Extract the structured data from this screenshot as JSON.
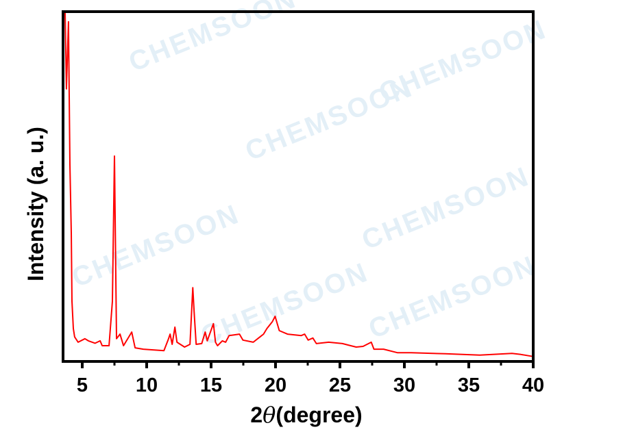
{
  "watermark": "CHEMSOON",
  "chart_data": {
    "type": "line",
    "title": "",
    "xlabel_prefix": "2",
    "xlabel_symbol": "θ",
    "xlabel_suffix": "(degree)",
    "ylabel": "Intensity (a. u.)",
    "xlim": [
      3.5,
      40
    ],
    "ylim": [
      0,
      100
    ],
    "x_ticks": [
      5,
      10,
      15,
      20,
      25,
      30,
      35,
      40
    ],
    "x_minor_step": 2.5,
    "y_ticks": [],
    "grid": false,
    "series": [
      {
        "color": "#ff0000",
        "points": [
          [
            3.51,
            100
          ],
          [
            3.67,
            100
          ],
          [
            3.77,
            77.9
          ],
          [
            3.93,
            97.1
          ],
          [
            4.04,
            56.4
          ],
          [
            4.15,
            36.8
          ],
          [
            4.2,
            17.2
          ],
          [
            4.31,
            9.4
          ],
          [
            4.41,
            7.0
          ],
          [
            4.68,
            5.5
          ],
          [
            5.21,
            6.5
          ],
          [
            5.48,
            5.9
          ],
          [
            6.0,
            5.2
          ],
          [
            6.39,
            5.9
          ],
          [
            6.55,
            4.5
          ],
          [
            7.08,
            4.5
          ],
          [
            7.34,
            17.2
          ],
          [
            7.5,
            58.7
          ],
          [
            7.66,
            6.5
          ],
          [
            7.93,
            7.8
          ],
          [
            8.2,
            4.5
          ],
          [
            8.84,
            8.4
          ],
          [
            9.1,
            3.9
          ],
          [
            9.74,
            3.5
          ],
          [
            11.34,
            3.1
          ],
          [
            11.66,
            6.1
          ],
          [
            11.82,
            7.8
          ],
          [
            11.98,
            4.9
          ],
          [
            12.19,
            9.8
          ],
          [
            12.35,
            5.5
          ],
          [
            12.94,
            4.1
          ],
          [
            13.36,
            4.9
          ],
          [
            13.58,
            21.1
          ],
          [
            13.68,
            14.3
          ],
          [
            13.84,
            4.9
          ],
          [
            14.27,
            5.1
          ],
          [
            14.54,
            8.4
          ],
          [
            14.7,
            5.9
          ],
          [
            15.18,
            10.8
          ],
          [
            15.34,
            5.5
          ],
          [
            15.5,
            4.5
          ],
          [
            15.87,
            5.9
          ],
          [
            16.13,
            5.5
          ],
          [
            16.4,
            7.4
          ],
          [
            17.2,
            7.8
          ],
          [
            17.47,
            6.1
          ],
          [
            18.27,
            5.5
          ],
          [
            19.07,
            7.8
          ],
          [
            19.33,
            9.4
          ],
          [
            19.76,
            11.4
          ],
          [
            19.97,
            12.9
          ],
          [
            20.29,
            8.8
          ],
          [
            20.93,
            7.8
          ],
          [
            22.0,
            7.4
          ],
          [
            22.26,
            7.8
          ],
          [
            22.53,
            6.1
          ],
          [
            22.9,
            6.7
          ],
          [
            23.17,
            5.1
          ],
          [
            24.13,
            5.5
          ],
          [
            25.19,
            5.1
          ],
          [
            26.26,
            4.1
          ],
          [
            26.79,
            4.3
          ],
          [
            27.43,
            5.5
          ],
          [
            27.64,
            3.5
          ],
          [
            28.39,
            3.5
          ],
          [
            29.45,
            2.5
          ],
          [
            30.52,
            2.5
          ],
          [
            33.18,
            2.2
          ],
          [
            35.85,
            1.8
          ],
          [
            38.35,
            2.3
          ],
          [
            39.04,
            2.0
          ],
          [
            40.0,
            1.4
          ]
        ]
      }
    ]
  }
}
